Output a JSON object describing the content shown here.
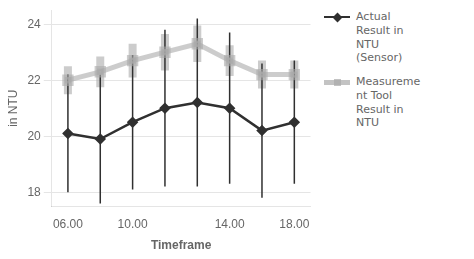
{
  "chart_data": {
    "type": "line",
    "xlabel": "Timeframe",
    "ylabel": "in NTU",
    "categories": [
      "06.00",
      null,
      "10.00",
      null,
      null,
      "14.00",
      null,
      "18.00"
    ],
    "series": [
      {
        "name": "Actual\nResult in\nNTU\n(Sensor)",
        "color": "#303030",
        "marker": "diamond",
        "values": [
          20.1,
          19.9,
          20.5,
          21.0,
          21.2,
          21.0,
          20.2,
          20.5
        ],
        "errors": [
          2.1,
          2.3,
          2.4,
          2.8,
          3.0,
          2.7,
          2.4,
          2.2
        ]
      },
      {
        "name": "Measureme\nnt Tool\nResult in\nNTU",
        "color": "#aaaaaa",
        "marker": "square",
        "values": [
          22.0,
          22.3,
          22.7,
          23.0,
          23.3,
          22.7,
          22.2,
          22.2
        ],
        "errors": [
          0.5,
          0.55,
          0.6,
          0.65,
          0.65,
          0.55,
          0.5,
          0.5
        ]
      }
    ],
    "ylim": [
      17.5,
      24.5
    ],
    "yticks": [
      18,
      20,
      22,
      24
    ],
    "grid": "y",
    "legend": "right"
  }
}
